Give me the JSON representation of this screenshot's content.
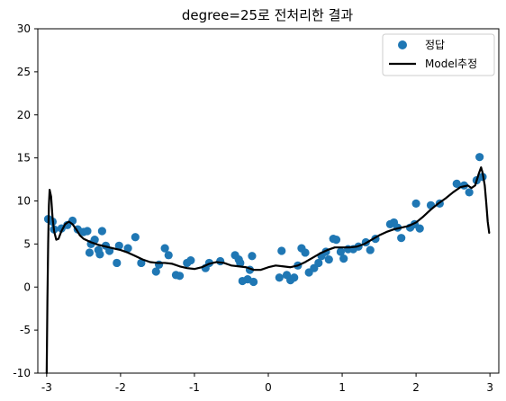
{
  "chart_data": {
    "type": "scatter",
    "title": "degree=25로 전처리한 결과",
    "xlabel": "",
    "ylabel": "",
    "xlim": [
      -3.12,
      3.12
    ],
    "ylim": [
      -10,
      30
    ],
    "xticks": [
      -3,
      -2,
      -1,
      0,
      1,
      2,
      3
    ],
    "yticks": [
      -10,
      -5,
      0,
      5,
      10,
      15,
      20,
      25,
      30
    ],
    "xtick_labels": [
      "-3",
      "-2",
      "-1",
      "0",
      "1",
      "2",
      "3"
    ],
    "ytick_labels": [
      "-10",
      "-5",
      "0",
      "5",
      "10",
      "15",
      "20",
      "25",
      "30"
    ],
    "grid": false,
    "legend_position": "top-right",
    "series": [
      {
        "name": "정답",
        "kind": "scatter",
        "color": "#1f77b4",
        "points": [
          [
            -2.98,
            7.9
          ],
          [
            -2.92,
            7.6
          ],
          [
            -2.9,
            6.7
          ],
          [
            -2.8,
            6.8
          ],
          [
            -2.72,
            7.2
          ],
          [
            -2.65,
            7.7
          ],
          [
            -2.58,
            6.7
          ],
          [
            -2.5,
            6.4
          ],
          [
            -2.45,
            6.5
          ],
          [
            -2.42,
            4.0
          ],
          [
            -2.4,
            5.0
          ],
          [
            -2.35,
            5.5
          ],
          [
            -2.3,
            4.3
          ],
          [
            -2.28,
            3.8
          ],
          [
            -2.25,
            6.5
          ],
          [
            -2.2,
            4.8
          ],
          [
            -2.15,
            4.2
          ],
          [
            -2.05,
            2.8
          ],
          [
            -2.02,
            4.8
          ],
          [
            -1.9,
            4.5
          ],
          [
            -1.8,
            5.8
          ],
          [
            -1.72,
            2.8
          ],
          [
            -1.52,
            1.8
          ],
          [
            -1.48,
            2.6
          ],
          [
            -1.4,
            4.5
          ],
          [
            -1.35,
            3.7
          ],
          [
            -1.25,
            1.4
          ],
          [
            -1.2,
            1.3
          ],
          [
            -1.1,
            2.8
          ],
          [
            -1.05,
            3.1
          ],
          [
            -0.85,
            2.2
          ],
          [
            -0.8,
            2.8
          ],
          [
            -0.65,
            3.0
          ],
          [
            -0.45,
            3.7
          ],
          [
            -0.4,
            3.2
          ],
          [
            -0.38,
            2.8
          ],
          [
            -0.35,
            0.7
          ],
          [
            -0.28,
            0.9
          ],
          [
            -0.25,
            2.0
          ],
          [
            -0.22,
            3.6
          ],
          [
            -0.2,
            0.6
          ],
          [
            0.15,
            1.1
          ],
          [
            0.18,
            4.2
          ],
          [
            0.25,
            1.4
          ],
          [
            0.3,
            0.8
          ],
          [
            0.35,
            1.1
          ],
          [
            0.4,
            2.5
          ],
          [
            0.45,
            4.5
          ],
          [
            0.5,
            4.0
          ],
          [
            0.55,
            1.7
          ],
          [
            0.62,
            2.2
          ],
          [
            0.68,
            2.8
          ],
          [
            0.72,
            3.6
          ],
          [
            0.78,
            4.1
          ],
          [
            0.82,
            3.2
          ],
          [
            0.88,
            5.6
          ],
          [
            0.92,
            5.5
          ],
          [
            0.98,
            4.1
          ],
          [
            1.02,
            3.3
          ],
          [
            1.08,
            4.4
          ],
          [
            1.15,
            4.4
          ],
          [
            1.22,
            4.7
          ],
          [
            1.32,
            5.2
          ],
          [
            1.38,
            4.3
          ],
          [
            1.45,
            5.6
          ],
          [
            1.65,
            7.3
          ],
          [
            1.7,
            7.5
          ],
          [
            1.75,
            6.9
          ],
          [
            1.8,
            5.7
          ],
          [
            1.92,
            6.9
          ],
          [
            1.98,
            7.3
          ],
          [
            2.0,
            9.7
          ],
          [
            2.05,
            6.8
          ],
          [
            2.2,
            9.5
          ],
          [
            2.32,
            9.7
          ],
          [
            2.55,
            12.0
          ],
          [
            2.65,
            11.8
          ],
          [
            2.72,
            11.0
          ],
          [
            2.82,
            12.4
          ],
          [
            2.86,
            15.1
          ],
          [
            2.9,
            12.8
          ]
        ]
      },
      {
        "name": "Model추정",
        "kind": "line",
        "color": "#000000",
        "points": [
          [
            -3.0,
            -10.0
          ],
          [
            -2.99,
            -1.5
          ],
          [
            -2.98,
            5.0
          ],
          [
            -2.97,
            9.5
          ],
          [
            -2.96,
            11.3
          ],
          [
            -2.94,
            10.5
          ],
          [
            -2.92,
            8.0
          ],
          [
            -2.9,
            6.5
          ],
          [
            -2.87,
            5.5
          ],
          [
            -2.84,
            5.6
          ],
          [
            -2.8,
            6.5
          ],
          [
            -2.75,
            7.3
          ],
          [
            -2.7,
            7.6
          ],
          [
            -2.65,
            7.3
          ],
          [
            -2.6,
            6.7
          ],
          [
            -2.55,
            6.0
          ],
          [
            -2.5,
            5.6
          ],
          [
            -2.4,
            5.2
          ],
          [
            -2.3,
            4.9
          ],
          [
            -2.2,
            4.7
          ],
          [
            -2.1,
            4.5
          ],
          [
            -2.0,
            4.3
          ],
          [
            -1.9,
            4.0
          ],
          [
            -1.8,
            3.6
          ],
          [
            -1.7,
            3.2
          ],
          [
            -1.6,
            2.9
          ],
          [
            -1.5,
            2.8
          ],
          [
            -1.4,
            2.8
          ],
          [
            -1.3,
            2.7
          ],
          [
            -1.2,
            2.4
          ],
          [
            -1.1,
            2.2
          ],
          [
            -1.0,
            2.1
          ],
          [
            -0.9,
            2.3
          ],
          [
            -0.8,
            2.7
          ],
          [
            -0.7,
            2.9
          ],
          [
            -0.6,
            2.8
          ],
          [
            -0.5,
            2.5
          ],
          [
            -0.4,
            2.4
          ],
          [
            -0.3,
            2.3
          ],
          [
            -0.2,
            2.0
          ],
          [
            -0.1,
            2.0
          ],
          [
            0.0,
            2.3
          ],
          [
            0.1,
            2.5
          ],
          [
            0.2,
            2.4
          ],
          [
            0.3,
            2.3
          ],
          [
            0.4,
            2.5
          ],
          [
            0.5,
            2.9
          ],
          [
            0.6,
            3.4
          ],
          [
            0.7,
            3.9
          ],
          [
            0.8,
            4.3
          ],
          [
            0.9,
            4.6
          ],
          [
            1.0,
            4.6
          ],
          [
            1.1,
            4.6
          ],
          [
            1.2,
            4.7
          ],
          [
            1.3,
            5.0
          ],
          [
            1.4,
            5.5
          ],
          [
            1.5,
            6.0
          ],
          [
            1.6,
            6.4
          ],
          [
            1.7,
            6.7
          ],
          [
            1.8,
            6.9
          ],
          [
            1.9,
            7.1
          ],
          [
            2.0,
            7.5
          ],
          [
            2.1,
            8.2
          ],
          [
            2.2,
            9.0
          ],
          [
            2.3,
            9.7
          ],
          [
            2.4,
            10.3
          ],
          [
            2.5,
            11.0
          ],
          [
            2.6,
            11.6
          ],
          [
            2.7,
            11.8
          ],
          [
            2.75,
            11.5
          ],
          [
            2.8,
            11.8
          ],
          [
            2.85,
            13.2
          ],
          [
            2.88,
            13.9
          ],
          [
            2.9,
            13.3
          ],
          [
            2.93,
            11.8
          ],
          [
            2.95,
            9.8
          ],
          [
            2.97,
            7.6
          ],
          [
            2.99,
            6.3
          ]
        ]
      }
    ]
  }
}
